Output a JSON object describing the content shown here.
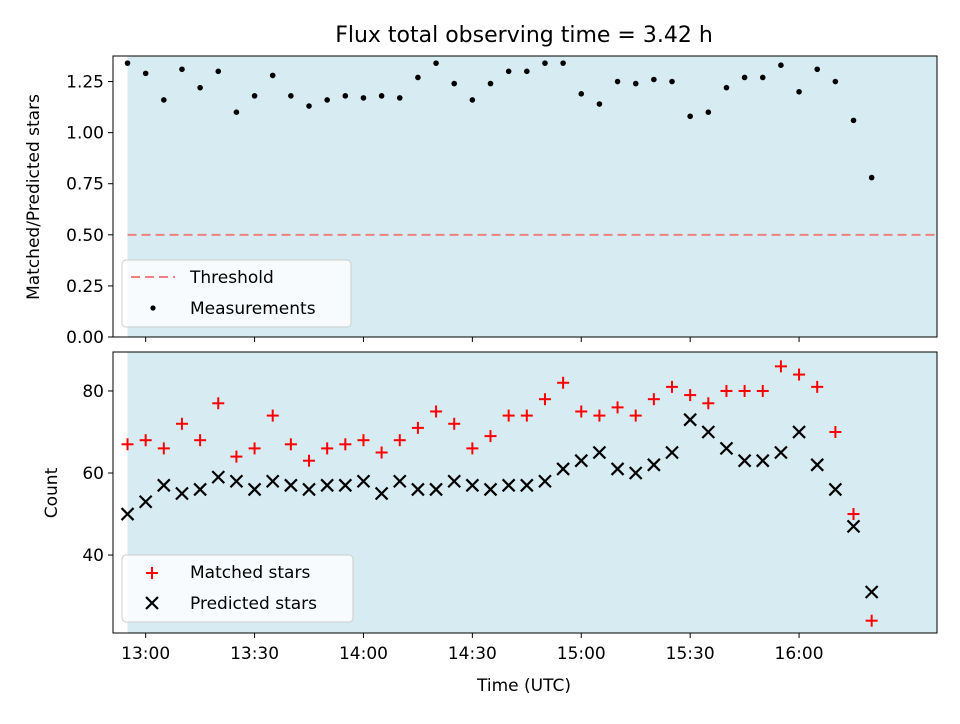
{
  "chart_data": [
    {
      "type": "scatter",
      "title": "Flux total observing time = 3.42 h",
      "ylabel": "Matched/Predicted stars",
      "xlabel": "",
      "xlim": [
        "12:51",
        "16:38"
      ],
      "ylim": [
        0,
        1.375
      ],
      "yticks": [
        "0.00",
        "0.25",
        "0.50",
        "0.75",
        "1.00",
        "1.25"
      ],
      "shaded_span": [
        "12:55",
        "17:20"
      ],
      "colors": {
        "shade": "#add8e6",
        "threshold": "#f08080",
        "points": "#000000"
      },
      "legend": {
        "placement": "lower-left",
        "entries": [
          "Threshold",
          "Measurements"
        ]
      },
      "threshold": 0.5,
      "series": [
        {
          "name": "Measurements",
          "x": [
            "12:55",
            "13:00",
            "13:05",
            "13:10",
            "13:15",
            "13:20",
            "13:25",
            "13:30",
            "13:35",
            "13:40",
            "13:45",
            "13:50",
            "13:55",
            "14:00",
            "14:05",
            "14:10",
            "14:15",
            "14:20",
            "14:25",
            "14:30",
            "14:35",
            "14:40",
            "14:45",
            "14:50",
            "14:55",
            "15:00",
            "15:05",
            "15:10",
            "15:15",
            "15:20",
            "15:25",
            "15:30",
            "15:35",
            "15:40",
            "15:45",
            "15:50",
            "15:55",
            "16:00",
            "16:05",
            "16:10",
            "16:15",
            "16:20"
          ],
          "values": [
            1.34,
            1.29,
            1.16,
            1.31,
            1.22,
            1.3,
            1.1,
            1.18,
            1.28,
            1.18,
            1.13,
            1.16,
            1.18,
            1.17,
            1.18,
            1.17,
            1.27,
            1.34,
            1.24,
            1.16,
            1.24,
            1.3,
            1.3,
            1.34,
            1.34,
            1.19,
            1.14,
            1.25,
            1.24,
            1.26,
            1.25,
            1.08,
            1.1,
            1.22,
            1.27,
            1.27,
            1.33,
            1.2,
            1.31,
            1.25,
            1.06,
            0.78
          ]
        }
      ]
    },
    {
      "type": "scatter",
      "title": "",
      "ylabel": "Count",
      "xlabel": "Time (UTC)",
      "xlim": [
        "12:51",
        "16:38"
      ],
      "xticks": [
        "13:00",
        "13:30",
        "14:00",
        "14:30",
        "15:00",
        "15:30",
        "16:00"
      ],
      "ylim": [
        21,
        89.5
      ],
      "yticks": [
        "40",
        "60",
        "80"
      ],
      "shaded_span": [
        "12:55",
        "17:20"
      ],
      "colors": {
        "matched": "#ff0000",
        "predicted": "#000000",
        "shade": "#add8e6"
      },
      "legend": {
        "placement": "lower-left",
        "entries": [
          "Matched stars",
          "Predicted stars"
        ]
      },
      "series": [
        {
          "name": "Matched stars",
          "x": [
            "12:55",
            "13:00",
            "13:05",
            "13:10",
            "13:15",
            "13:20",
            "13:25",
            "13:30",
            "13:35",
            "13:40",
            "13:45",
            "13:50",
            "13:55",
            "14:00",
            "14:05",
            "14:10",
            "14:15",
            "14:20",
            "14:25",
            "14:30",
            "14:35",
            "14:40",
            "14:45",
            "14:50",
            "14:55",
            "15:00",
            "15:05",
            "15:10",
            "15:15",
            "15:20",
            "15:25",
            "15:30",
            "15:35",
            "15:40",
            "15:45",
            "15:50",
            "15:55",
            "16:00",
            "16:05",
            "16:10",
            "16:15",
            "16:20"
          ],
          "values": [
            67,
            68,
            66,
            72,
            68,
            77,
            64,
            66,
            74,
            67,
            63,
            66,
            67,
            68,
            65,
            68,
            71,
            75,
            72,
            66,
            69,
            74,
            74,
            78,
            82,
            75,
            74,
            76,
            74,
            78,
            81,
            79,
            77,
            80,
            80,
            80,
            86,
            84,
            81,
            70,
            50,
            24
          ]
        },
        {
          "name": "Predicted stars",
          "x": [
            "12:55",
            "13:00",
            "13:05",
            "13:10",
            "13:15",
            "13:20",
            "13:25",
            "13:30",
            "13:35",
            "13:40",
            "13:45",
            "13:50",
            "13:55",
            "14:00",
            "14:05",
            "14:10",
            "14:15",
            "14:20",
            "14:25",
            "14:30",
            "14:35",
            "14:40",
            "14:45",
            "14:50",
            "14:55",
            "15:00",
            "15:05",
            "15:10",
            "15:15",
            "15:20",
            "15:25",
            "15:30",
            "15:35",
            "15:40",
            "15:45",
            "15:50",
            "15:55",
            "16:00",
            "16:05",
            "16:10",
            "16:15",
            "16:20"
          ],
          "values": [
            50,
            53,
            57,
            55,
            56,
            59,
            58,
            56,
            58,
            57,
            56,
            57,
            57,
            58,
            55,
            58,
            56,
            56,
            58,
            57,
            56,
            57,
            57,
            58,
            61,
            63,
            65,
            61,
            60,
            62,
            65,
            73,
            70,
            66,
            63,
            63,
            65,
            70,
            62,
            56,
            47,
            31
          ]
        }
      ]
    }
  ]
}
